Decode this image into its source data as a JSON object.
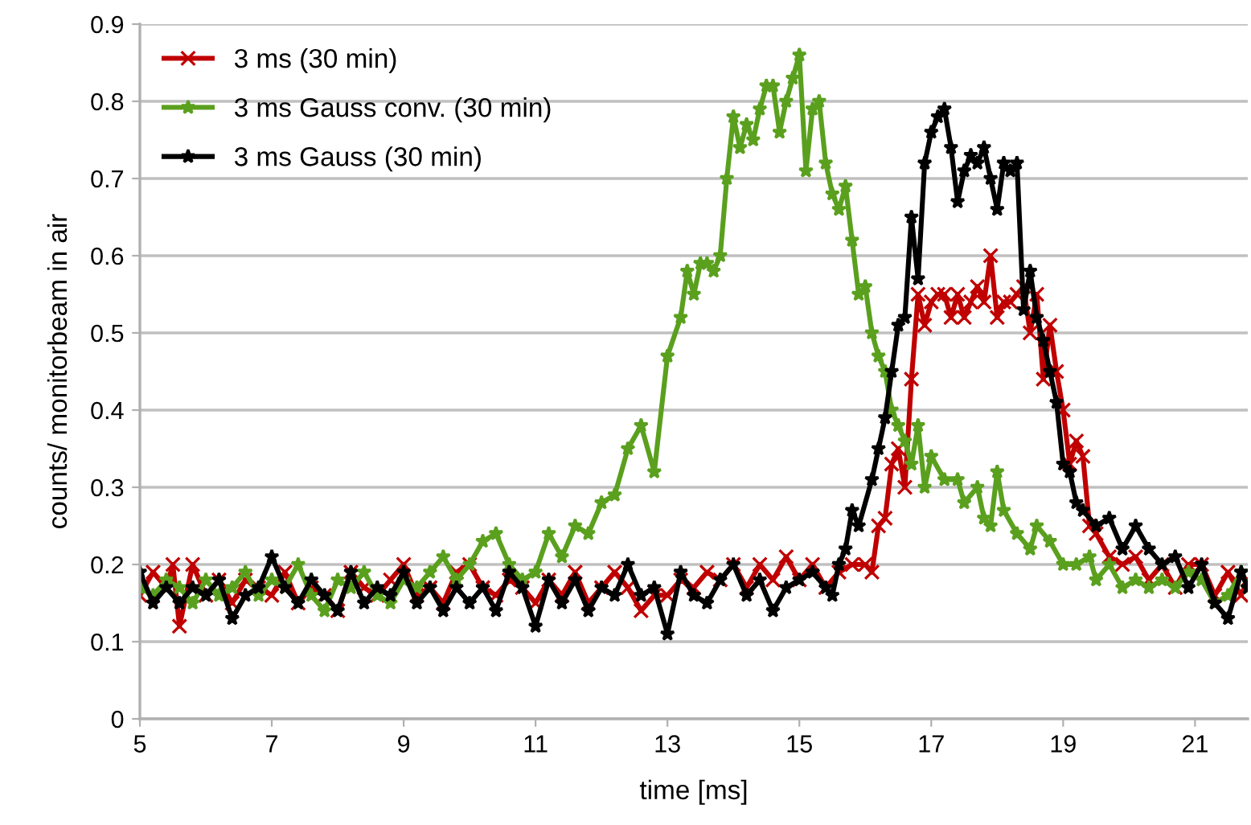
{
  "chart_data": {
    "type": "line",
    "xlabel": "time [ms]",
    "ylabel": "counts/ monitorbeam in air",
    "xlim": [
      5,
      21.8
    ],
    "xticks": [
      5,
      7,
      9,
      11,
      13,
      15,
      17,
      19,
      21
    ],
    "ylim": [
      0,
      0.9
    ],
    "yticks": [
      0,
      0.1,
      0.2,
      0.3,
      0.4,
      0.5,
      0.6,
      0.7,
      0.8,
      0.9
    ],
    "grid": "y",
    "legend": "top left",
    "line_style": "solid",
    "series": [
      {
        "name": "3 ms (30 min)",
        "color": "#c00000",
        "marker": "cross",
        "x": [
          5.0,
          5.2,
          5.4,
          5.5,
          5.6,
          5.8,
          6.0,
          6.2,
          6.4,
          6.6,
          6.8,
          7.0,
          7.2,
          7.4,
          7.6,
          7.8,
          8.0,
          8.2,
          8.4,
          8.6,
          8.8,
          9.0,
          9.2,
          9.4,
          9.6,
          9.8,
          10.0,
          10.2,
          10.4,
          10.6,
          10.8,
          11.0,
          11.2,
          11.4,
          11.6,
          11.8,
          12.0,
          12.2,
          12.4,
          12.6,
          12.8,
          13.0,
          13.2,
          13.4,
          13.6,
          13.8,
          14.0,
          14.2,
          14.4,
          14.6,
          14.8,
          15.0,
          15.2,
          15.4,
          15.6,
          15.8,
          16.0,
          16.1,
          16.2,
          16.3,
          16.4,
          16.5,
          16.6,
          16.7,
          16.8,
          16.9,
          17.0,
          17.1,
          17.2,
          17.3,
          17.4,
          17.5,
          17.6,
          17.7,
          17.8,
          17.9,
          18.0,
          18.1,
          18.2,
          18.3,
          18.4,
          18.5,
          18.6,
          18.7,
          18.8,
          18.9,
          19.0,
          19.1,
          19.2,
          19.3,
          19.4,
          19.5,
          19.7,
          19.9,
          20.1,
          20.3,
          20.5,
          20.7,
          20.9,
          21.1,
          21.3,
          21.5,
          21.7,
          21.8
        ],
        "values": [
          0.16,
          0.19,
          0.17,
          0.2,
          0.12,
          0.2,
          0.16,
          0.18,
          0.15,
          0.18,
          0.17,
          0.16,
          0.19,
          0.15,
          0.17,
          0.16,
          0.14,
          0.19,
          0.17,
          0.16,
          0.18,
          0.2,
          0.16,
          0.17,
          0.15,
          0.19,
          0.2,
          0.17,
          0.16,
          0.18,
          0.17,
          0.15,
          0.18,
          0.16,
          0.19,
          0.15,
          0.17,
          0.19,
          0.17,
          0.14,
          0.16,
          0.16,
          0.18,
          0.17,
          0.19,
          0.18,
          0.2,
          0.17,
          0.2,
          0.18,
          0.21,
          0.18,
          0.2,
          0.17,
          0.19,
          0.2,
          0.2,
          0.19,
          0.25,
          0.26,
          0.33,
          0.35,
          0.3,
          0.44,
          0.55,
          0.51,
          0.54,
          0.55,
          0.55,
          0.52,
          0.55,
          0.52,
          0.54,
          0.56,
          0.54,
          0.6,
          0.52,
          0.54,
          0.54,
          0.55,
          0.56,
          0.5,
          0.55,
          0.44,
          0.51,
          0.45,
          0.4,
          0.33,
          0.36,
          0.34,
          0.25,
          0.24,
          0.21,
          0.2,
          0.21,
          0.18,
          0.2,
          0.17,
          0.2,
          0.2,
          0.16,
          0.19,
          0.16,
          0.18
        ]
      },
      {
        "name": "3 ms Gauss conv. (30 min)",
        "color": "#5aa01e",
        "marker": "star",
        "x": [
          5.0,
          5.2,
          5.4,
          5.6,
          5.8,
          6.0,
          6.2,
          6.4,
          6.6,
          6.8,
          7.0,
          7.2,
          7.4,
          7.6,
          7.8,
          8.0,
          8.2,
          8.4,
          8.6,
          8.8,
          9.0,
          9.2,
          9.4,
          9.6,
          9.8,
          10.0,
          10.2,
          10.4,
          10.6,
          10.8,
          11.0,
          11.2,
          11.4,
          11.6,
          11.8,
          12.0,
          12.2,
          12.4,
          12.6,
          12.8,
          13.0,
          13.2,
          13.3,
          13.4,
          13.5,
          13.6,
          13.7,
          13.8,
          13.9,
          14.0,
          14.1,
          14.2,
          14.3,
          14.4,
          14.5,
          14.6,
          14.7,
          14.8,
          14.9,
          15.0,
          15.1,
          15.2,
          15.3,
          15.4,
          15.5,
          15.6,
          15.7,
          15.8,
          15.9,
          16.0,
          16.1,
          16.2,
          16.3,
          16.4,
          16.5,
          16.6,
          16.7,
          16.8,
          16.9,
          17.0,
          17.2,
          17.4,
          17.5,
          17.7,
          17.8,
          17.9,
          18.0,
          18.1,
          18.3,
          18.5,
          18.6,
          18.8,
          19.0,
          19.2,
          19.4,
          19.5,
          19.7,
          19.9,
          20.1,
          20.3,
          20.5,
          20.7,
          20.9,
          21.1,
          21.3,
          21.5,
          21.7,
          21.8
        ],
        "values": [
          0.17,
          0.16,
          0.18,
          0.17,
          0.15,
          0.18,
          0.16,
          0.17,
          0.19,
          0.16,
          0.18,
          0.17,
          0.2,
          0.16,
          0.14,
          0.18,
          0.17,
          0.19,
          0.16,
          0.15,
          0.18,
          0.17,
          0.19,
          0.21,
          0.18,
          0.2,
          0.23,
          0.24,
          0.2,
          0.18,
          0.19,
          0.24,
          0.21,
          0.25,
          0.24,
          0.28,
          0.29,
          0.35,
          0.38,
          0.32,
          0.47,
          0.52,
          0.58,
          0.55,
          0.59,
          0.59,
          0.58,
          0.6,
          0.7,
          0.78,
          0.74,
          0.77,
          0.75,
          0.79,
          0.82,
          0.82,
          0.76,
          0.8,
          0.83,
          0.86,
          0.71,
          0.79,
          0.8,
          0.72,
          0.68,
          0.66,
          0.69,
          0.62,
          0.55,
          0.56,
          0.5,
          0.47,
          0.45,
          0.4,
          0.38,
          0.36,
          0.33,
          0.38,
          0.3,
          0.34,
          0.31,
          0.31,
          0.28,
          0.3,
          0.26,
          0.25,
          0.32,
          0.27,
          0.24,
          0.22,
          0.25,
          0.23,
          0.2,
          0.2,
          0.21,
          0.18,
          0.2,
          0.17,
          0.18,
          0.17,
          0.18,
          0.17,
          0.19,
          0.18,
          0.15,
          0.16,
          0.19,
          0.17
        ]
      },
      {
        "name": "3 ms Gauss (30 min)",
        "color": "#000000",
        "marker": "star",
        "x": [
          5.0,
          5.2,
          5.4,
          5.6,
          5.8,
          6.0,
          6.2,
          6.4,
          6.6,
          6.8,
          7.0,
          7.2,
          7.4,
          7.6,
          7.8,
          8.0,
          8.2,
          8.4,
          8.6,
          8.8,
          9.0,
          9.2,
          9.4,
          9.6,
          9.8,
          10.0,
          10.2,
          10.4,
          10.6,
          10.8,
          11.0,
          11.2,
          11.4,
          11.6,
          11.8,
          12.0,
          12.2,
          12.4,
          12.6,
          12.8,
          13.0,
          13.2,
          13.4,
          13.6,
          13.8,
          14.0,
          14.2,
          14.4,
          14.6,
          14.8,
          15.0,
          15.2,
          15.4,
          15.5,
          15.6,
          15.7,
          15.8,
          15.9,
          16.1,
          16.2,
          16.3,
          16.4,
          16.5,
          16.6,
          16.7,
          16.8,
          16.9,
          17.0,
          17.1,
          17.2,
          17.3,
          17.4,
          17.5,
          17.6,
          17.7,
          17.8,
          17.9,
          18.0,
          18.1,
          18.2,
          18.3,
          18.4,
          18.5,
          18.6,
          18.7,
          18.8,
          18.9,
          19.0,
          19.1,
          19.2,
          19.3,
          19.5,
          19.7,
          19.9,
          20.1,
          20.3,
          20.5,
          20.7,
          20.9,
          21.1,
          21.3,
          21.5,
          21.7,
          21.8
        ],
        "values": [
          0.19,
          0.15,
          0.17,
          0.15,
          0.17,
          0.16,
          0.18,
          0.13,
          0.16,
          0.17,
          0.21,
          0.17,
          0.15,
          0.18,
          0.16,
          0.14,
          0.19,
          0.15,
          0.17,
          0.16,
          0.19,
          0.15,
          0.17,
          0.14,
          0.17,
          0.15,
          0.17,
          0.14,
          0.19,
          0.17,
          0.12,
          0.18,
          0.15,
          0.18,
          0.14,
          0.17,
          0.16,
          0.2,
          0.16,
          0.17,
          0.11,
          0.19,
          0.16,
          0.15,
          0.18,
          0.2,
          0.16,
          0.18,
          0.14,
          0.17,
          0.18,
          0.19,
          0.17,
          0.16,
          0.2,
          0.22,
          0.27,
          0.25,
          0.31,
          0.35,
          0.39,
          0.45,
          0.51,
          0.52,
          0.65,
          0.57,
          0.72,
          0.76,
          0.78,
          0.79,
          0.74,
          0.67,
          0.71,
          0.73,
          0.72,
          0.74,
          0.7,
          0.66,
          0.72,
          0.71,
          0.72,
          0.53,
          0.58,
          0.52,
          0.49,
          0.45,
          0.41,
          0.33,
          0.32,
          0.28,
          0.27,
          0.25,
          0.26,
          0.22,
          0.25,
          0.22,
          0.2,
          0.21,
          0.17,
          0.2,
          0.15,
          0.13,
          0.19,
          0.17
        ]
      }
    ]
  }
}
